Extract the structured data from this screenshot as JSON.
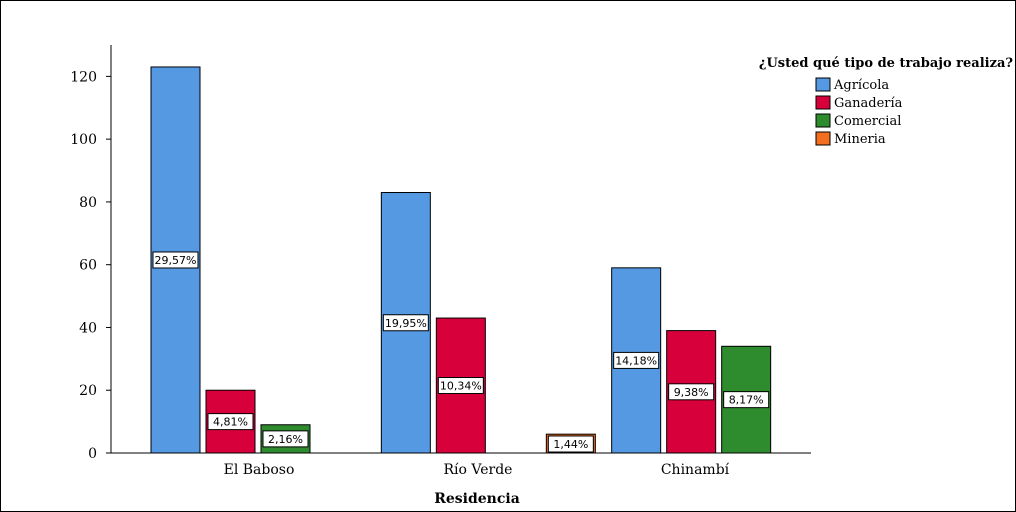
{
  "chart_data": {
    "type": "bar",
    "title": "",
    "xlabel": "Residencia",
    "ylabel": "",
    "ylim": [
      0,
      130
    ],
    "yticks": [
      0,
      20,
      40,
      60,
      80,
      100,
      120
    ],
    "categories": [
      "El Baboso",
      "Río Verde",
      "Chinambí"
    ],
    "legend_title": "¿Usted qué tipo de trabajo realiza?",
    "legend_position": "top-right",
    "grid": false,
    "series": [
      {
        "name": "Agrícola",
        "color": "#5599e3",
        "values": [
          123,
          83,
          59
        ],
        "labels": [
          "29,57%",
          "19,95%",
          "14,18%"
        ]
      },
      {
        "name": "Ganadería",
        "color": "#d8003a",
        "values": [
          20,
          43,
          39
        ],
        "labels": [
          "4,81%",
          "10,34%",
          "9,38%"
        ]
      },
      {
        "name": "Comercial",
        "color": "#2e8b2e",
        "values": [
          9,
          null,
          34
        ],
        "labels": [
          "2,16%",
          null,
          "8,17%"
        ]
      },
      {
        "name": "Mineria",
        "color": "#f26f22",
        "values": [
          null,
          6,
          null
        ],
        "labels": [
          null,
          "1,44%",
          null
        ]
      }
    ]
  }
}
